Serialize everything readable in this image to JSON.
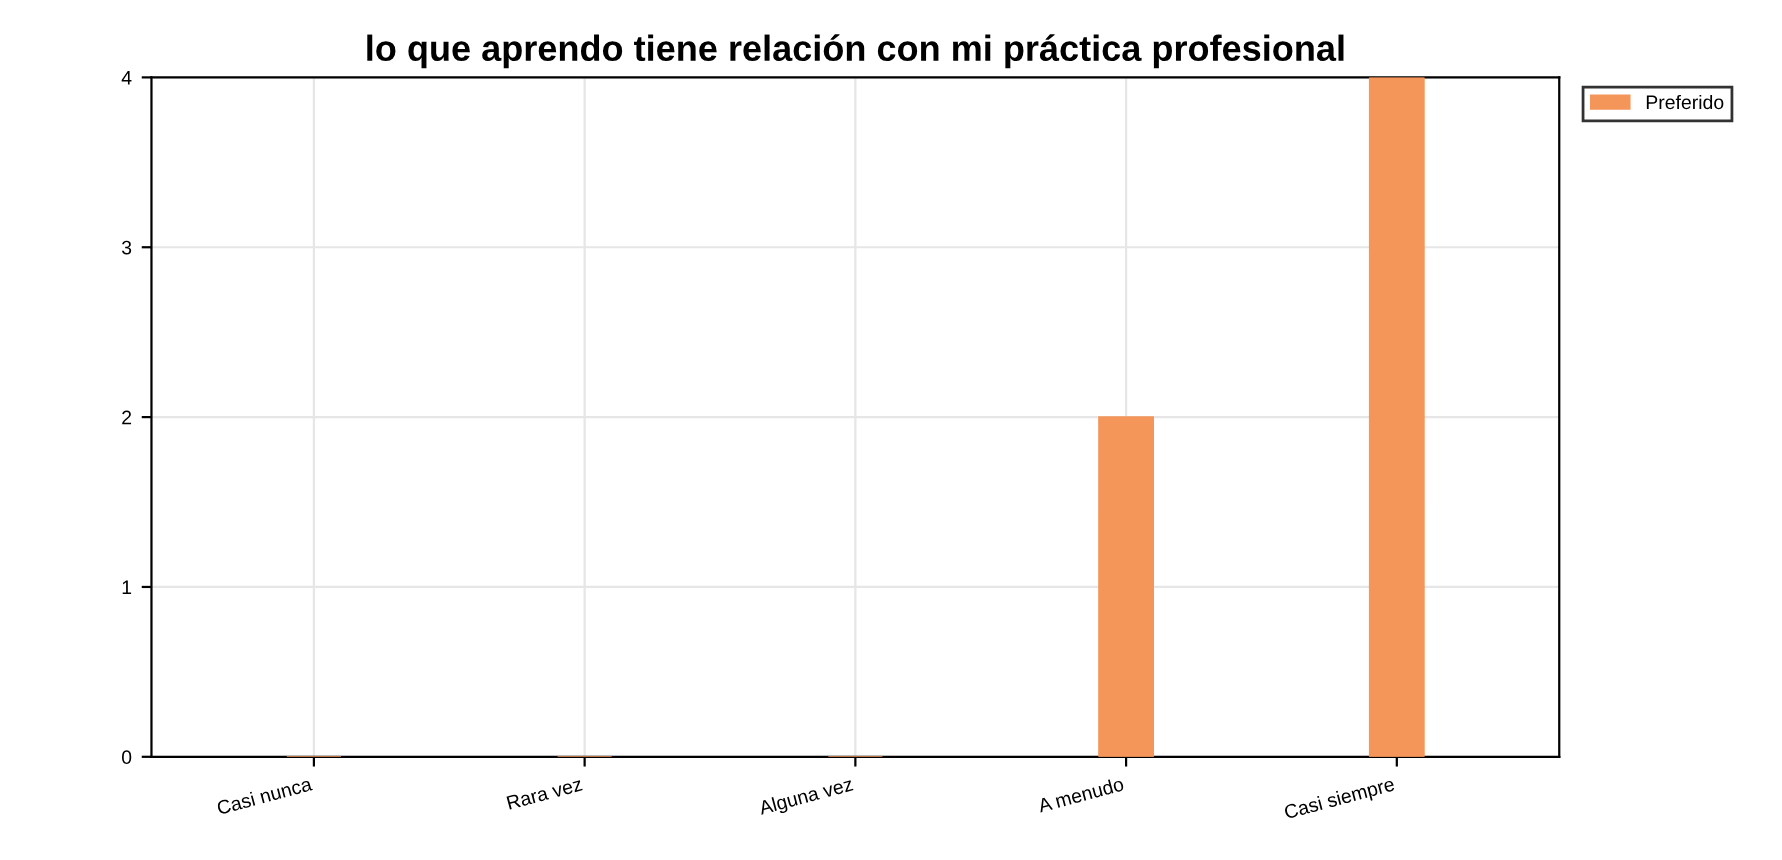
{
  "chart_data": {
    "type": "bar",
    "title": "lo que aprendo tiene relación con mi práctica profesional",
    "categories": [
      "Casi nunca",
      "Rara vez",
      "Alguna vez",
      "A menudo",
      "Casi siempre"
    ],
    "series": [
      {
        "name": "Preferido",
        "color": "#f4955a",
        "values": [
          0,
          0,
          0,
          2,
          4
        ]
      }
    ],
    "ylim": [
      0,
      4
    ],
    "yticks": [
      0,
      1,
      2,
      3,
      4
    ],
    "grid": true,
    "legend": "top right"
  }
}
